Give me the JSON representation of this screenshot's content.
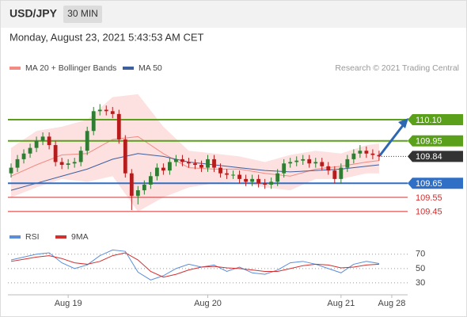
{
  "header": {
    "symbol": "USD/JPY",
    "timeframe": "30 MIN",
    "datetime": "Monday, August 23, 2021 5:43:53 AM CET",
    "credit": "Research © 2021 Trading Central"
  },
  "chart_data": [
    {
      "type": "candlestick",
      "xlim": [
        -0.5,
        62.5
      ],
      "ylim": [
        109.32,
        110.33
      ],
      "up_color": "#2e7d32",
      "down_color": "#b71c1c",
      "candles": {
        "open": [
          109.72,
          109.76,
          109.82,
          109.86,
          109.9,
          109.95,
          109.98,
          109.92,
          109.8,
          109.78,
          109.79,
          109.8,
          109.88,
          110.02,
          110.16,
          110.17,
          110.16,
          110.14,
          109.96,
          109.72,
          109.56,
          109.6,
          109.64,
          109.7,
          109.76,
          109.74,
          109.8,
          109.82,
          109.8,
          109.79,
          109.78,
          109.76,
          109.82,
          109.76,
          109.72,
          109.71,
          109.71,
          109.68,
          109.66,
          109.68,
          109.65,
          109.64,
          109.66,
          109.72,
          109.79,
          109.8,
          109.81,
          109.82,
          109.79,
          109.8,
          109.77,
          109.74,
          109.68,
          109.76,
          109.82,
          109.86,
          109.88,
          109.86,
          109.85
        ],
        "high": [
          109.79,
          109.85,
          109.89,
          109.93,
          109.98,
          110.01,
          110.01,
          109.95,
          109.83,
          109.82,
          109.83,
          109.91,
          110.05,
          110.19,
          110.21,
          110.2,
          110.19,
          110.17,
          109.99,
          109.75,
          109.63,
          109.67,
          109.73,
          109.79,
          109.79,
          109.83,
          109.85,
          109.85,
          109.83,
          109.82,
          109.81,
          109.85,
          109.85,
          109.79,
          109.75,
          109.74,
          109.74,
          109.71,
          109.71,
          109.71,
          109.68,
          109.69,
          109.75,
          109.82,
          109.83,
          109.84,
          109.85,
          109.85,
          109.83,
          109.83,
          109.8,
          109.77,
          109.79,
          109.85,
          109.89,
          109.92,
          109.91,
          109.89,
          109.88
        ],
        "low": [
          109.69,
          109.73,
          109.79,
          109.83,
          109.87,
          109.92,
          109.89,
          109.77,
          109.75,
          109.75,
          109.76,
          109.77,
          109.85,
          109.99,
          110.13,
          110.13,
          110.11,
          109.93,
          109.69,
          109.46,
          109.5,
          109.57,
          109.61,
          109.67,
          109.71,
          109.71,
          109.77,
          109.77,
          109.76,
          109.75,
          109.73,
          109.73,
          109.73,
          109.69,
          109.68,
          109.68,
          109.65,
          109.63,
          109.63,
          109.62,
          109.61,
          109.61,
          109.63,
          109.69,
          109.76,
          109.77,
          109.78,
          109.76,
          109.76,
          109.74,
          109.71,
          109.65,
          109.65,
          109.73,
          109.79,
          109.83,
          109.83,
          109.82,
          109.81
        ],
        "close": [
          109.76,
          109.82,
          109.86,
          109.9,
          109.95,
          109.98,
          109.92,
          109.8,
          109.78,
          109.79,
          109.8,
          109.88,
          110.02,
          110.16,
          110.17,
          110.16,
          110.14,
          109.96,
          109.72,
          109.56,
          109.6,
          109.64,
          109.7,
          109.76,
          109.74,
          109.8,
          109.82,
          109.8,
          109.79,
          109.78,
          109.76,
          109.82,
          109.76,
          109.72,
          109.71,
          109.71,
          109.68,
          109.66,
          109.68,
          109.65,
          109.64,
          109.66,
          109.72,
          109.79,
          109.8,
          109.81,
          109.82,
          109.79,
          109.8,
          109.77,
          109.74,
          109.68,
          109.76,
          109.82,
          109.86,
          109.88,
          109.86,
          109.85,
          109.84
        ]
      },
      "bands": {
        "name": "MA 20 + Bollinger Bands",
        "color": "#f28b82",
        "fill": "#fde0e0",
        "x": [
          0,
          4,
          8,
          12,
          16,
          20,
          24,
          28,
          32,
          36,
          40,
          44,
          48,
          52,
          56,
          58
        ],
        "upper": [
          109.9,
          110.02,
          110.05,
          110.1,
          110.26,
          110.28,
          110.05,
          109.88,
          109.86,
          109.84,
          109.8,
          109.85,
          109.88,
          109.86,
          109.92,
          109.93
        ],
        "lower": [
          109.55,
          109.62,
          109.68,
          109.66,
          109.7,
          109.45,
          109.55,
          109.62,
          109.65,
          109.66,
          109.62,
          109.6,
          109.68,
          109.68,
          109.72,
          109.72
        ],
        "values": [
          109.7,
          109.78,
          109.85,
          109.86,
          109.96,
          109.98,
          109.86,
          109.76,
          109.75,
          109.75,
          109.72,
          109.7,
          109.75,
          109.77,
          109.8,
          109.81
        ]
      },
      "ma50": {
        "name": "MA 50",
        "color": "#3d5f9e",
        "x": [
          0,
          4,
          8,
          12,
          16,
          20,
          24,
          28,
          32,
          36,
          40,
          44,
          48,
          52,
          56,
          58
        ],
        "values": [
          109.6,
          109.65,
          109.7,
          109.75,
          109.82,
          109.86,
          109.84,
          109.8,
          109.78,
          109.76,
          109.74,
          109.73,
          109.74,
          109.75,
          109.77,
          109.78
        ]
      },
      "levels": [
        {
          "value": 110.1,
          "label": "110.10",
          "color": "#5aa01a",
          "boxed": true
        },
        {
          "value": 109.95,
          "color": "#5aa01a",
          "boxed": true
        },
        {
          "value": 109.84,
          "color": "#333333",
          "boxed": true,
          "dotted": true
        },
        {
          "value": 109.65,
          "color": "#2f6fc6",
          "boxed": true
        },
        {
          "value": 109.55,
          "color": "#d32f2f",
          "boxed": false
        },
        {
          "value": 109.45,
          "color": "#d32f2f",
          "boxed": false
        }
      ]
    },
    {
      "type": "line",
      "xlim": [
        -0.5,
        62.5
      ],
      "ylim": [
        10,
        93
      ],
      "yticks": [
        30,
        50,
        70
      ],
      "grid": true,
      "xticks": [
        {
          "value": 9,
          "label": "Aug 19"
        },
        {
          "value": 31,
          "label": "Aug 20"
        },
        {
          "value": 52,
          "label": "Aug 21"
        },
        {
          "value": 60,
          "label": "Aug 28"
        }
      ],
      "x": [
        0,
        2,
        4,
        6,
        8,
        10,
        12,
        14,
        16,
        18,
        20,
        22,
        24,
        26,
        28,
        30,
        32,
        34,
        36,
        38,
        40,
        42,
        44,
        46,
        48,
        50,
        52,
        54,
        56,
        58
      ],
      "series": [
        {
          "name": "RSI",
          "color": "#5b8dd9",
          "values": [
            62,
            66,
            70,
            72,
            58,
            50,
            55,
            68,
            76,
            74,
            45,
            34,
            40,
            50,
            56,
            52,
            55,
            46,
            52,
            44,
            42,
            48,
            58,
            60,
            56,
            50,
            44,
            56,
            60,
            57
          ]
        },
        {
          "name": "9MA",
          "color": "#d32f2f",
          "values": [
            60,
            63,
            66,
            68,
            64,
            58,
            56,
            60,
            68,
            72,
            62,
            46,
            38,
            42,
            48,
            52,
            53,
            51,
            50,
            48,
            46,
            46,
            50,
            54,
            56,
            55,
            51,
            52,
            55,
            56
          ]
        }
      ]
    }
  ]
}
